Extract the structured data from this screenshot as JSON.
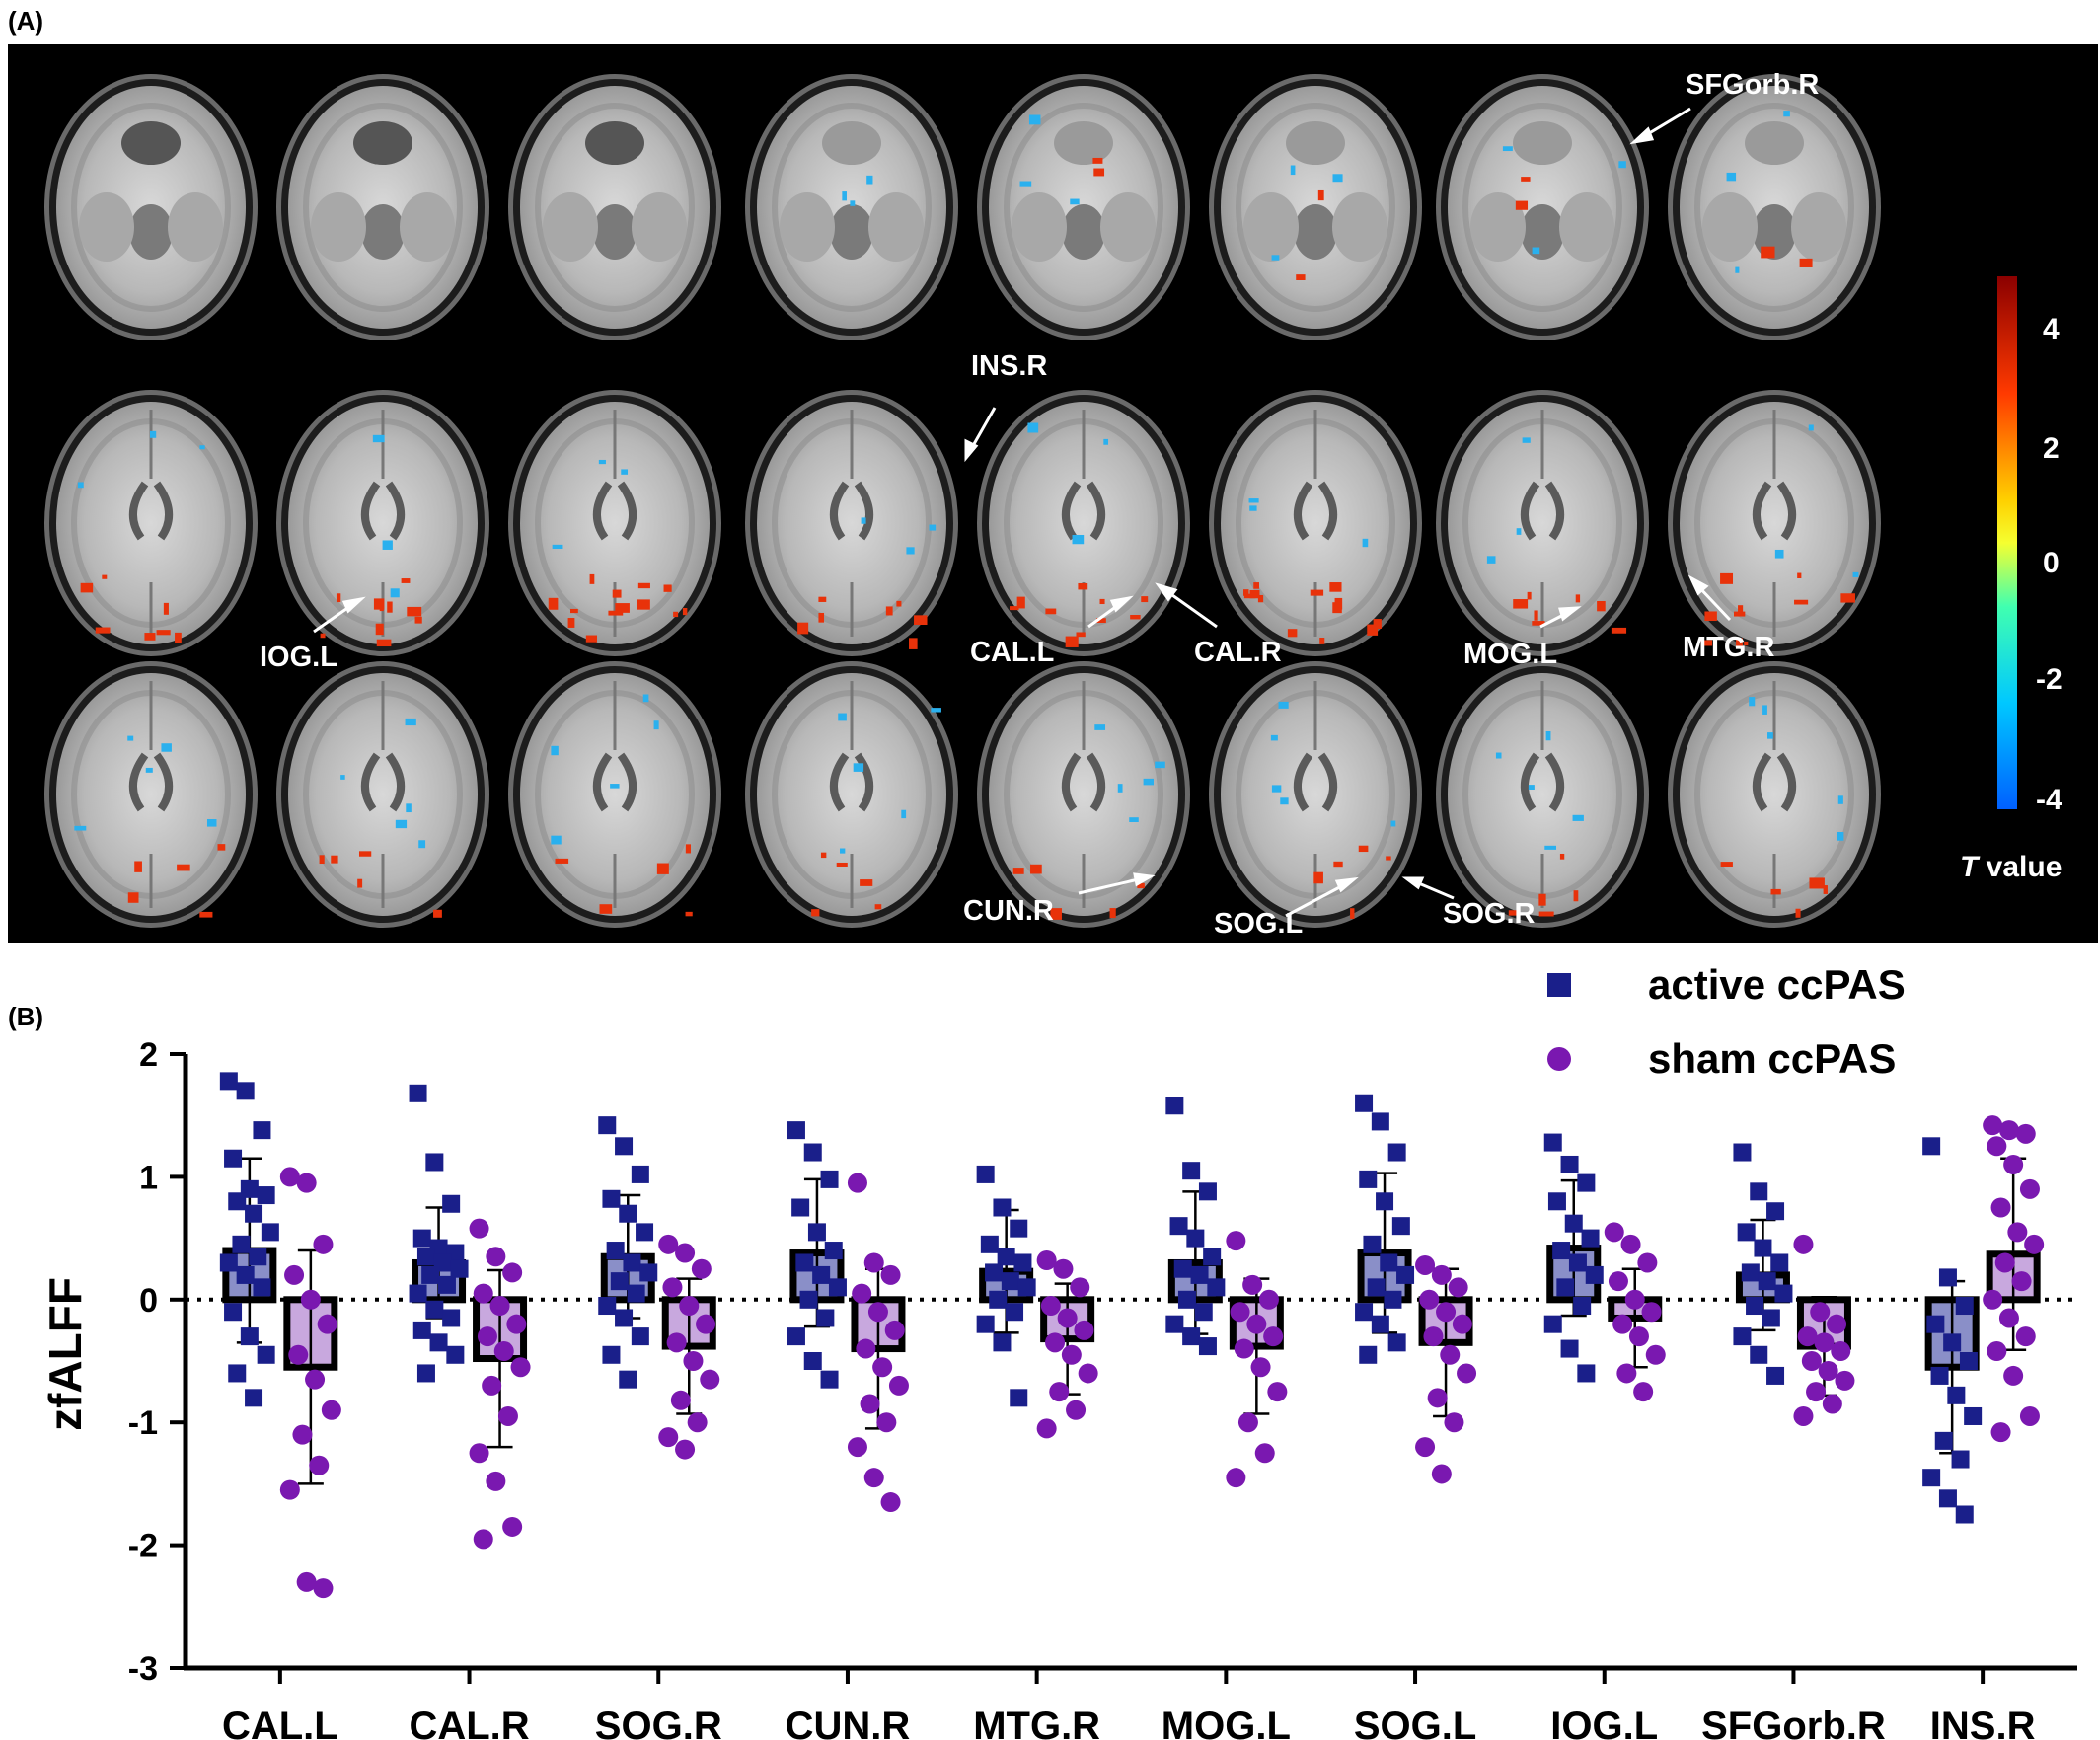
{
  "panels": {
    "a_label": "(A)",
    "b_label": "(B)"
  },
  "brain_map": {
    "colorbar": {
      "ticks": [
        "4",
        "2",
        "0",
        "-2",
        "-4"
      ],
      "label_italic": "T",
      "label_rest": " value",
      "colors": [
        "#8b0000",
        "#ff3a00",
        "#ffd000",
        "#f5ff30",
        "#40ffb0",
        "#00c8ff",
        "#0060ff"
      ]
    },
    "activation_colors": {
      "positive": "#e8320a",
      "negative": "#2ab0ee"
    },
    "callouts": {
      "sfgorb_r": "SFGorb.R",
      "ins_r": "INS.R",
      "iog_l": "IOG.L",
      "cal_l": "CAL.L",
      "cal_r": "CAL.R",
      "mog_l": "MOG.L",
      "mtg_r": "MTG.R",
      "cun_r": "CUN.R",
      "sog_l": "SOG.L",
      "sog_r": "SOG.R"
    }
  },
  "chart_data": {
    "type": "bar",
    "ylabel": "zfALFF",
    "xlabel": "",
    "ylim": [
      -3,
      2
    ],
    "yticks": [
      2,
      1,
      0,
      -1,
      -2,
      -3
    ],
    "reference_line": 0,
    "categories": [
      "CAL.L",
      "CAL.R",
      "SOG.R",
      "CUN.R",
      "MTG.R",
      "MOG.L",
      "SOG.L",
      "IOG.L",
      "SFGorb.R",
      "INS.R"
    ],
    "series": [
      {
        "name": "active ccPAS",
        "marker": "square",
        "color": "#1a1f8a",
        "fill": "#8a8fc8",
        "means": [
          0.4,
          0.3,
          0.35,
          0.38,
          0.23,
          0.3,
          0.38,
          0.42,
          0.2,
          -0.55
        ],
        "sd": [
          0.75,
          0.45,
          0.5,
          0.6,
          0.5,
          0.58,
          0.65,
          0.55,
          0.45,
          0.7
        ],
        "points": [
          [
            1.78,
            1.7,
            1.38,
            1.15,
            0.9,
            0.85,
            0.8,
            0.7,
            0.55,
            0.45,
            0.35,
            0.3,
            0.2,
            0.1,
            -0.1,
            -0.3,
            -0.45,
            -0.6,
            -0.8
          ],
          [
            1.68,
            1.12,
            0.78,
            0.5,
            0.42,
            0.38,
            0.35,
            0.3,
            0.25,
            0.2,
            0.12,
            0.05,
            -0.08,
            -0.15,
            -0.25,
            -0.35,
            -0.45,
            -0.6
          ],
          [
            1.42,
            1.25,
            1.02,
            0.82,
            0.7,
            0.55,
            0.4,
            0.3,
            0.22,
            0.15,
            0.05,
            -0.05,
            -0.15,
            -0.3,
            -0.45,
            -0.65
          ],
          [
            1.38,
            1.2,
            0.98,
            0.75,
            0.55,
            0.4,
            0.3,
            0.2,
            0.1,
            0.0,
            -0.15,
            -0.3,
            -0.5,
            -0.65
          ],
          [
            1.02,
            0.75,
            0.58,
            0.45,
            0.35,
            0.3,
            0.22,
            0.15,
            0.1,
            0.0,
            -0.1,
            -0.2,
            -0.35,
            -0.8
          ],
          [
            1.58,
            1.05,
            0.88,
            0.6,
            0.5,
            0.35,
            0.25,
            0.2,
            0.1,
            0.0,
            -0.1,
            -0.2,
            -0.3,
            -0.38
          ],
          [
            1.6,
            1.45,
            1.2,
            0.98,
            0.8,
            0.6,
            0.45,
            0.3,
            0.2,
            0.1,
            0.0,
            -0.1,
            -0.2,
            -0.35,
            -0.45
          ],
          [
            1.28,
            1.1,
            0.95,
            0.8,
            0.62,
            0.5,
            0.4,
            0.3,
            0.2,
            0.1,
            -0.05,
            -0.2,
            -0.4,
            -0.6
          ],
          [
            1.2,
            0.88,
            0.72,
            0.55,
            0.42,
            0.3,
            0.22,
            0.15,
            0.05,
            -0.05,
            -0.15,
            -0.3,
            -0.45,
            -0.62
          ],
          [
            1.25,
            0.18,
            -0.05,
            -0.2,
            -0.35,
            -0.5,
            -0.62,
            -0.78,
            -0.95,
            -1.15,
            -1.3,
            -1.45,
            -1.62,
            -1.75
          ]
        ]
      },
      {
        "name": "sham ccPAS",
        "marker": "circle",
        "color": "#7a18b0",
        "fill": "#c8a8de",
        "means": [
          -0.55,
          -0.48,
          -0.38,
          -0.4,
          -0.32,
          -0.38,
          -0.35,
          -0.15,
          -0.38,
          0.37
        ],
        "sd": [
          0.95,
          0.72,
          0.55,
          0.65,
          0.45,
          0.55,
          0.6,
          0.4,
          0.4,
          0.78
        ],
        "points": [
          [
            1.0,
            0.95,
            0.45,
            0.2,
            0.0,
            -0.2,
            -0.45,
            -0.65,
            -0.9,
            -1.1,
            -1.35,
            -1.55,
            -2.3,
            -2.35
          ],
          [
            0.58,
            0.35,
            0.22,
            0.05,
            -0.05,
            -0.2,
            -0.3,
            -0.42,
            -0.55,
            -0.7,
            -0.95,
            -1.25,
            -1.48,
            -1.85,
            -1.95
          ],
          [
            0.45,
            0.38,
            0.25,
            0.1,
            -0.05,
            -0.2,
            -0.35,
            -0.5,
            -0.65,
            -0.82,
            -1.0,
            -1.12,
            -1.22
          ],
          [
            0.95,
            0.3,
            0.2,
            0.05,
            -0.1,
            -0.25,
            -0.4,
            -0.55,
            -0.7,
            -0.85,
            -1.0,
            -1.2,
            -1.45,
            -1.65
          ],
          [
            0.32,
            0.25,
            0.1,
            -0.05,
            -0.15,
            -0.25,
            -0.35,
            -0.45,
            -0.6,
            -0.75,
            -0.9,
            -1.05
          ],
          [
            0.48,
            0.12,
            0.0,
            -0.1,
            -0.2,
            -0.3,
            -0.4,
            -0.55,
            -0.75,
            -1.0,
            -1.25,
            -1.45
          ],
          [
            0.28,
            0.2,
            0.1,
            0.0,
            -0.1,
            -0.2,
            -0.3,
            -0.45,
            -0.6,
            -0.8,
            -1.0,
            -1.2,
            -1.42
          ],
          [
            0.55,
            0.45,
            0.3,
            0.15,
            0.0,
            -0.1,
            -0.2,
            -0.3,
            -0.45,
            -0.6,
            -0.75
          ],
          [
            0.45,
            -0.1,
            -0.2,
            -0.3,
            -0.35,
            -0.42,
            -0.5,
            -0.58,
            -0.66,
            -0.75,
            -0.85,
            -0.95
          ],
          [
            1.42,
            1.38,
            1.35,
            1.25,
            1.1,
            0.9,
            0.75,
            0.55,
            0.45,
            0.3,
            0.15,
            0.0,
            -0.15,
            -0.3,
            -0.42,
            -0.62,
            -0.95,
            -1.08
          ]
        ]
      }
    ]
  }
}
